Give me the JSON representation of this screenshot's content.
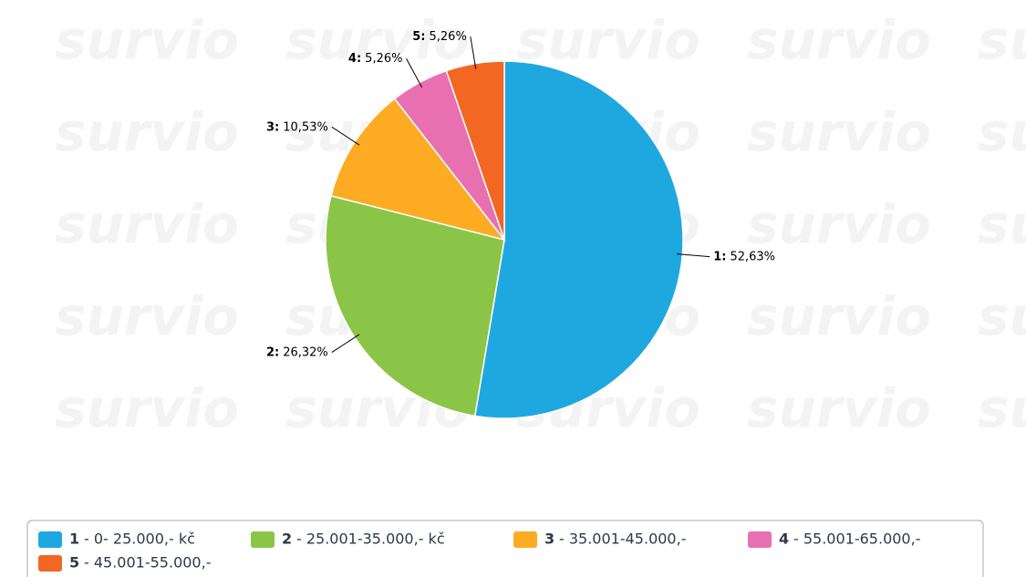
{
  "chart_data": {
    "type": "pie",
    "watermark": "survio",
    "labels": [
      "1:",
      "2:",
      "3:",
      "4:",
      "5:"
    ],
    "values": [
      52.63,
      26.32,
      10.53,
      5.26,
      5.26
    ],
    "value_labels": [
      "52,63%",
      "26,32%",
      "10,53%",
      "5,26%",
      "5,26%"
    ],
    "colors": [
      "#1fa8e0",
      "#8bc547",
      "#fdab23",
      "#e870b0",
      "#f26722"
    ],
    "legend": [
      {
        "key": "1",
        "text": "- 0- 25.000,- kč"
      },
      {
        "key": "2",
        "text": "- 25.001-35.000,- kč"
      },
      {
        "key": "3",
        "text": "- 35.001-45.000,-"
      },
      {
        "key": "4",
        "text": "- 55.001-65.000,-"
      },
      {
        "key": "5",
        "text": "- 45.001-55.000,-"
      }
    ]
  }
}
